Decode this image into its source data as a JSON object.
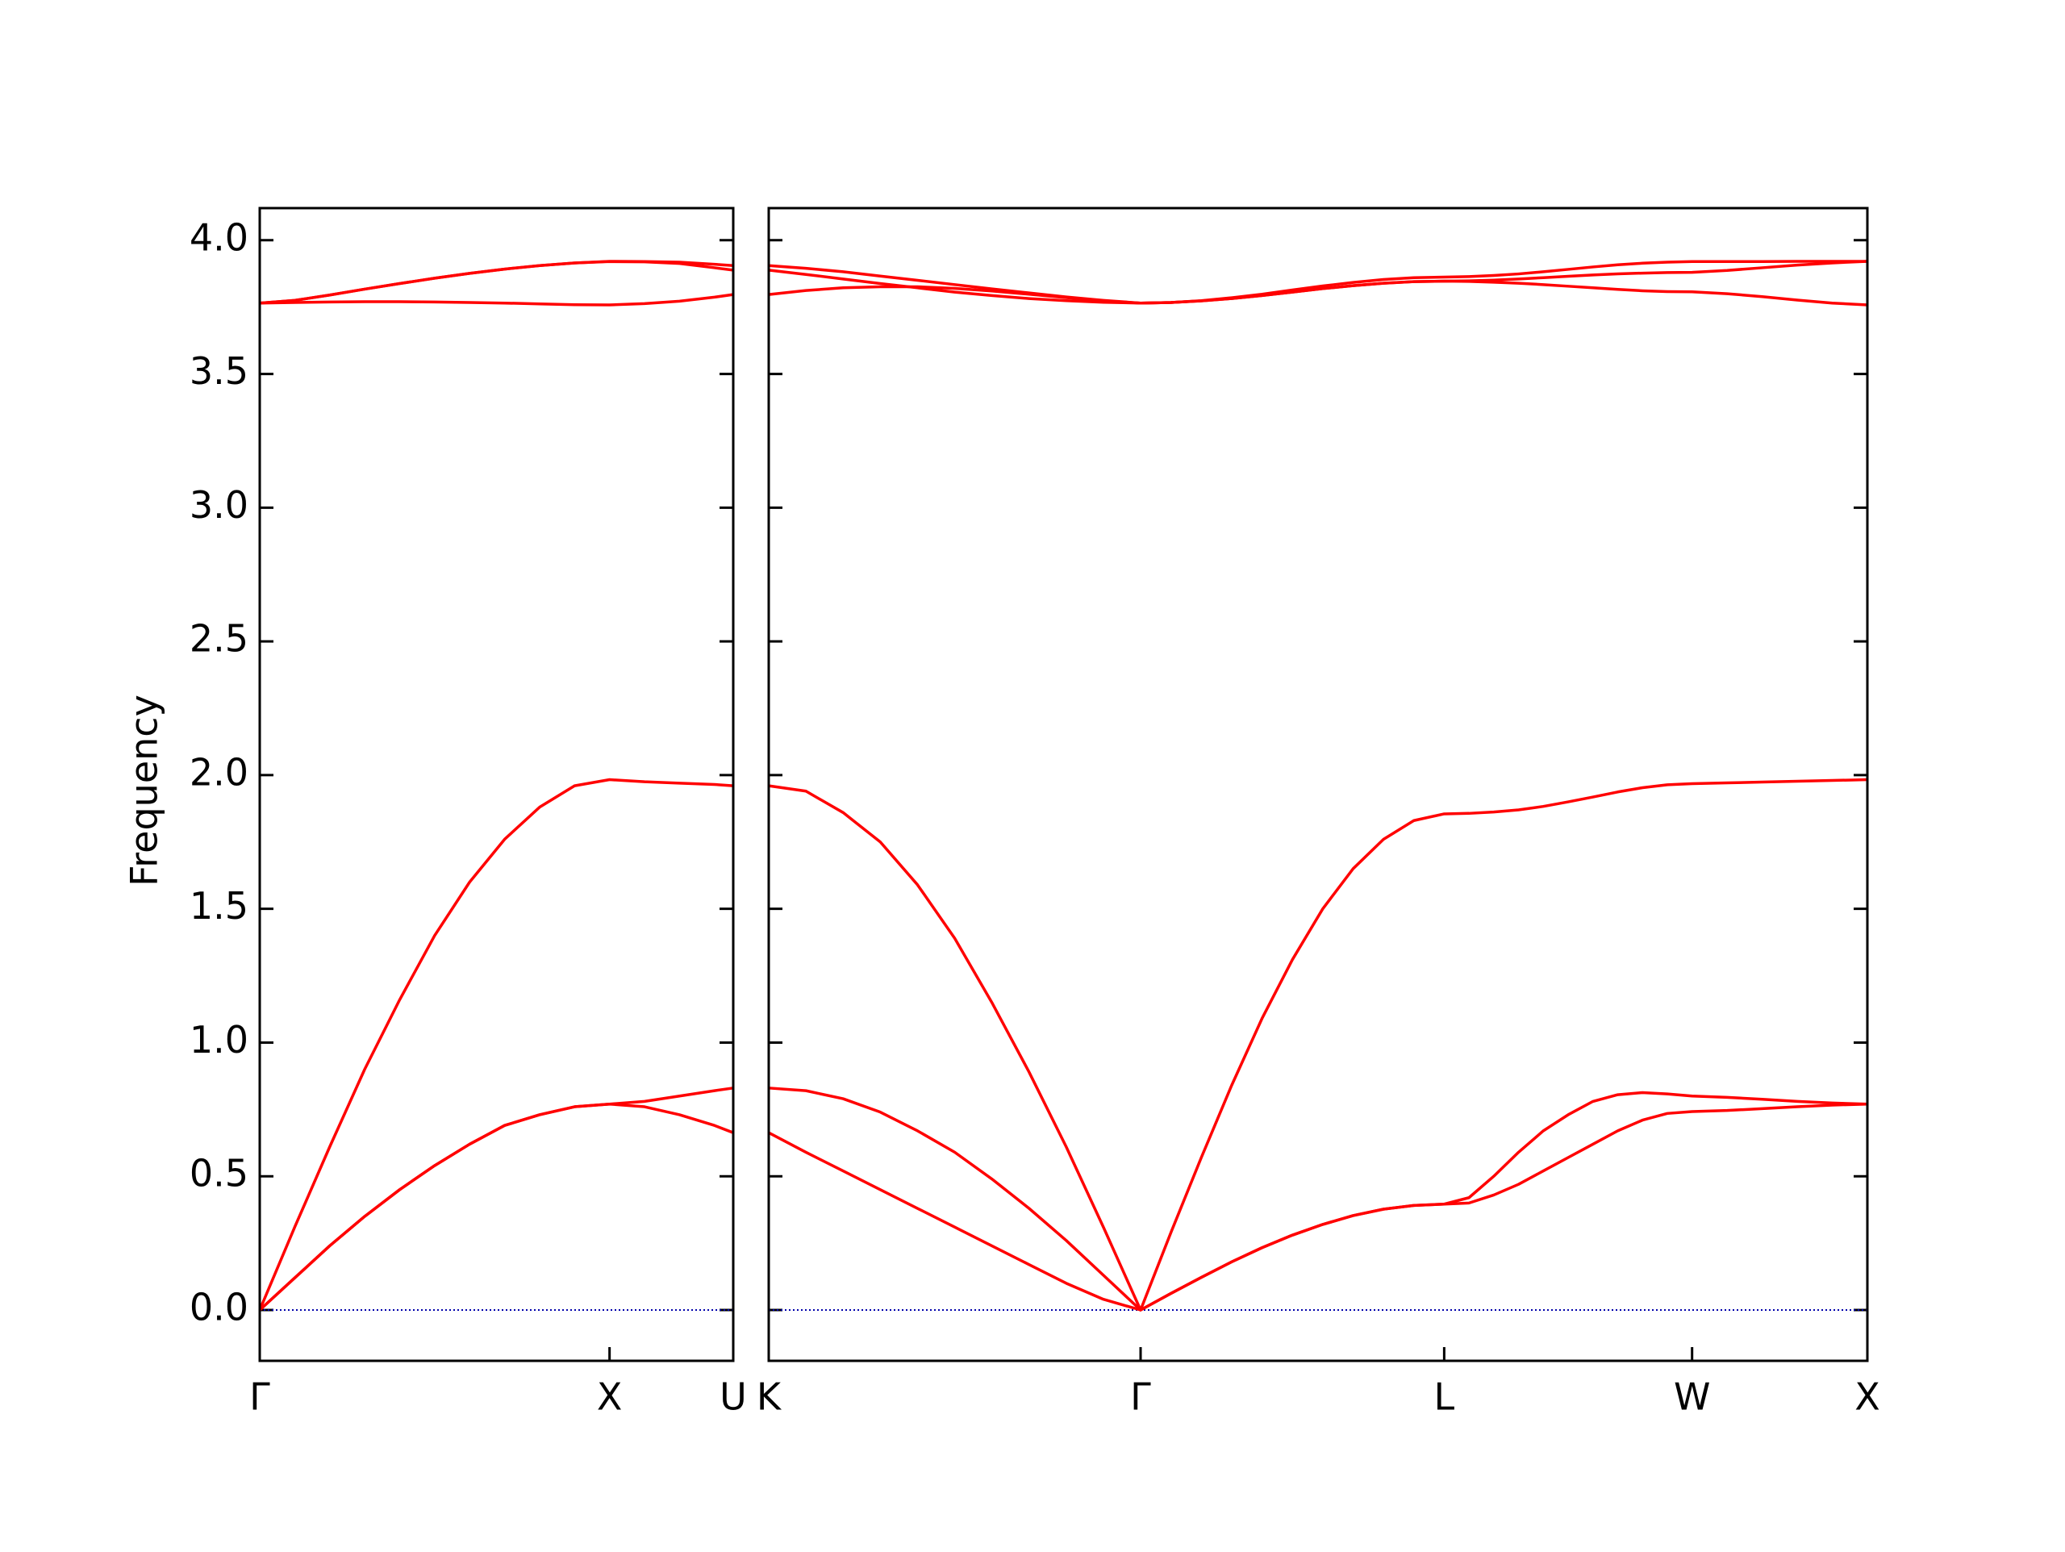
{
  "chart_data": {
    "type": "line",
    "ylabel": "Frequency",
    "ylim": [
      -0.19,
      4.12
    ],
    "yticks": [
      {
        "value": 0,
        "label": "0.0"
      },
      0.5,
      {
        "value": 1,
        "label": "1.0"
      },
      1.5,
      {
        "value": 2,
        "label": "2.0"
      },
      2.5,
      {
        "value": 3,
        "label": "3.0"
      },
      3.5,
      {
        "value": 4,
        "label": "4.0"
      }
    ],
    "zero_line": {
      "y": 0,
      "color": "#0000aa"
    },
    "panels": [
      {
        "xlim": [
          0,
          1.3536
        ],
        "xticks": [
          {
            "value": 0,
            "label": "Γ"
          },
          {
            "value": 1,
            "label": "X"
          },
          {
            "value": 1.3536,
            "label": "U"
          }
        ],
        "x": [
          0,
          0.1,
          0.2,
          0.3,
          0.4,
          0.5,
          0.6,
          0.7,
          0.8,
          0.9,
          1.0,
          1.1,
          1.2,
          1.3,
          1.3536
        ],
        "series": [
          {
            "color": "#ff0000",
            "values": [
              0,
              0.12,
              0.24,
              0.35,
              0.45,
              0.54,
              0.62,
              0.69,
              0.73,
              0.76,
              0.77,
              0.76,
              0.73,
              0.69,
              0.663
            ]
          },
          {
            "color": "#ff0000",
            "values": [
              0,
              0.12,
              0.24,
              0.35,
              0.45,
              0.54,
              0.62,
              0.69,
              0.73,
              0.76,
              0.77,
              0.78,
              0.8,
              0.82,
              0.83
            ]
          },
          {
            "color": "#ff0000",
            "values": [
              0,
              0.31,
              0.61,
              0.9,
              1.16,
              1.4,
              1.6,
              1.76,
              1.88,
              1.96,
              1.983,
              1.975,
              1.97,
              1.965,
              1.96
            ]
          },
          {
            "color": "#ff0000",
            "values": [
              3.765,
              3.767,
              3.769,
              3.77,
              3.77,
              3.769,
              3.767,
              3.765,
              3.762,
              3.759,
              3.758,
              3.763,
              3.772,
              3.787,
              3.797
            ]
          },
          {
            "color": "#ff0000",
            "values": [
              3.765,
              3.775,
              3.795,
              3.817,
              3.838,
              3.858,
              3.876,
              3.892,
              3.905,
              3.915,
              3.92,
              3.919,
              3.913,
              3.897,
              3.888
            ]
          },
          {
            "color": "#ff0000",
            "values": [
              3.765,
              3.775,
              3.795,
              3.817,
              3.838,
              3.858,
              3.876,
              3.892,
              3.905,
              3.915,
              3.921,
              3.92,
              3.918,
              3.91,
              3.905
            ]
          }
        ]
      },
      {
        "xlim": [
          1.3536,
          4.4874
        ],
        "xticks": [
          {
            "value": 1.3536,
            "label": "K"
          },
          {
            "value": 2.4143,
            "label": "Γ"
          },
          {
            "value": 3.2803,
            "label": "L"
          },
          {
            "value": 3.9874,
            "label": "W"
          },
          {
            "value": 4.4874,
            "label": "X"
          }
        ],
        "x": [
          1.3536,
          1.4597,
          1.5657,
          1.6718,
          1.7779,
          1.884,
          1.99,
          2.0961,
          2.2022,
          2.3082,
          2.4143,
          2.5009,
          2.5875,
          2.6741,
          2.7607,
          2.8473,
          2.9339,
          3.0205,
          3.1071,
          3.1937,
          3.2803,
          3.351,
          3.4217,
          3.4924,
          3.5631,
          3.6338,
          3.7046,
          3.7753,
          3.846,
          3.9167,
          3.9874,
          4.0874,
          4.1874,
          4.2874,
          4.3874,
          4.4874
        ],
        "series": [
          {
            "color": "#ff0000",
            "values": [
              0.663,
              0.59,
              0.52,
              0.45,
              0.38,
              0.31,
              0.24,
              0.17,
              0.1,
              0.04,
              0,
              0.062,
              0.122,
              0.18,
              0.233,
              0.28,
              0.32,
              0.353,
              0.377,
              0.391,
              0.396,
              0.4,
              0.43,
              0.47,
              0.52,
              0.57,
              0.62,
              0.67,
              0.71,
              0.735,
              0.742,
              0.746,
              0.753,
              0.76,
              0.766,
              0.77
            ]
          },
          {
            "color": "#ff0000",
            "values": [
              0.83,
              0.82,
              0.79,
              0.74,
              0.67,
              0.59,
              0.49,
              0.38,
              0.26,
              0.13,
              0,
              0.062,
              0.122,
              0.18,
              0.233,
              0.28,
              0.32,
              0.353,
              0.377,
              0.391,
              0.396,
              0.42,
              0.5,
              0.59,
              0.67,
              0.73,
              0.78,
              0.805,
              0.813,
              0.808,
              0.8,
              0.795,
              0.788,
              0.78,
              0.774,
              0.77
            ]
          },
          {
            "color": "#ff0000",
            "values": [
              1.96,
              1.94,
              1.86,
              1.75,
              1.59,
              1.39,
              1.15,
              0.89,
              0.61,
              0.31,
              0,
              0.29,
              0.57,
              0.84,
              1.09,
              1.31,
              1.5,
              1.65,
              1.76,
              1.83,
              1.855,
              1.857,
              1.862,
              1.87,
              1.883,
              1.9,
              1.918,
              1.937,
              1.953,
              1.964,
              1.968,
              1.971,
              1.974,
              1.977,
              1.98,
              1.983
            ]
          },
          {
            "color": "#ff0000",
            "values": [
              3.797,
              3.812,
              3.822,
              3.826,
              3.826,
              3.82,
              3.81,
              3.798,
              3.785,
              3.773,
              3.765,
              3.767,
              3.773,
              3.782,
              3.793,
              3.806,
              3.819,
              3.83,
              3.839,
              3.845,
              3.847,
              3.846,
              3.843,
              3.839,
              3.834,
              3.828,
              3.822,
              3.816,
              3.811,
              3.808,
              3.807,
              3.8,
              3.789,
              3.776,
              3.765,
              3.758
            ]
          },
          {
            "color": "#ff0000",
            "values": [
              3.888,
              3.872,
              3.855,
              3.838,
              3.822,
              3.806,
              3.793,
              3.782,
              3.774,
              3.768,
              3.765,
              3.767,
              3.774,
              3.785,
              3.798,
              3.814,
              3.829,
              3.842,
              3.853,
              3.86,
              3.862,
              3.864,
              3.868,
              3.874,
              3.882,
              3.891,
              3.9,
              3.908,
              3.914,
              3.918,
              3.92,
              3.92,
              3.92,
              3.921,
              3.921,
              3.921
            ]
          },
          {
            "color": "#ff0000",
            "values": [
              3.905,
              3.895,
              3.882,
              3.866,
              3.85,
              3.834,
              3.818,
              3.803,
              3.788,
              3.775,
              3.765,
              3.767,
              3.773,
              3.782,
              3.793,
              3.806,
              3.819,
              3.83,
              3.839,
              3.845,
              3.847,
              3.848,
              3.851,
              3.855,
              3.86,
              3.865,
              3.87,
              3.874,
              3.877,
              3.879,
              3.88,
              3.887,
              3.897,
              3.907,
              3.915,
              3.921
            ]
          }
        ]
      }
    ]
  }
}
